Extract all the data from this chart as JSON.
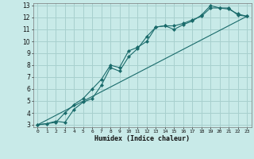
{
  "xlabel": "Humidex (Indice chaleur)",
  "bg_color": "#c8eae8",
  "grid_color": "#a8d0ce",
  "line_color": "#1a6b6b",
  "xlim": [
    -0.5,
    23.5
  ],
  "ylim": [
    2.8,
    13.2
  ],
  "xticks": [
    0,
    1,
    2,
    3,
    4,
    5,
    6,
    7,
    8,
    9,
    10,
    11,
    12,
    13,
    14,
    15,
    16,
    17,
    18,
    19,
    20,
    21,
    22,
    23
  ],
  "yticks": [
    3,
    4,
    5,
    6,
    7,
    8,
    9,
    10,
    11,
    12,
    13
  ],
  "series1_x": [
    0,
    1,
    2,
    3,
    4,
    5,
    6,
    7,
    8,
    9,
    10,
    11,
    12,
    13,
    14,
    15,
    16,
    17,
    18,
    19,
    20,
    21,
    22,
    23
  ],
  "series1_y": [
    3,
    3.1,
    3.3,
    3.2,
    4.3,
    4.9,
    5.2,
    6.3,
    7.8,
    7.5,
    8.7,
    9.4,
    10.4,
    11.2,
    11.3,
    11.0,
    11.4,
    11.7,
    12.2,
    13.0,
    12.8,
    12.8,
    12.2,
    12.1
  ],
  "series2_x": [
    0,
    2,
    3,
    4,
    5,
    6,
    7,
    8,
    9,
    10,
    11,
    12,
    13,
    14,
    15,
    16,
    17,
    18,
    19,
    20,
    21,
    22,
    23
  ],
  "series2_y": [
    3,
    3.2,
    4.0,
    4.7,
    5.2,
    6.0,
    6.8,
    8.0,
    7.8,
    9.2,
    9.5,
    10.0,
    11.2,
    11.3,
    11.3,
    11.5,
    11.8,
    12.1,
    12.8,
    12.8,
    12.7,
    12.3,
    12.1
  ],
  "series3_x": [
    0,
    23
  ],
  "series3_y": [
    3,
    12.1
  ]
}
